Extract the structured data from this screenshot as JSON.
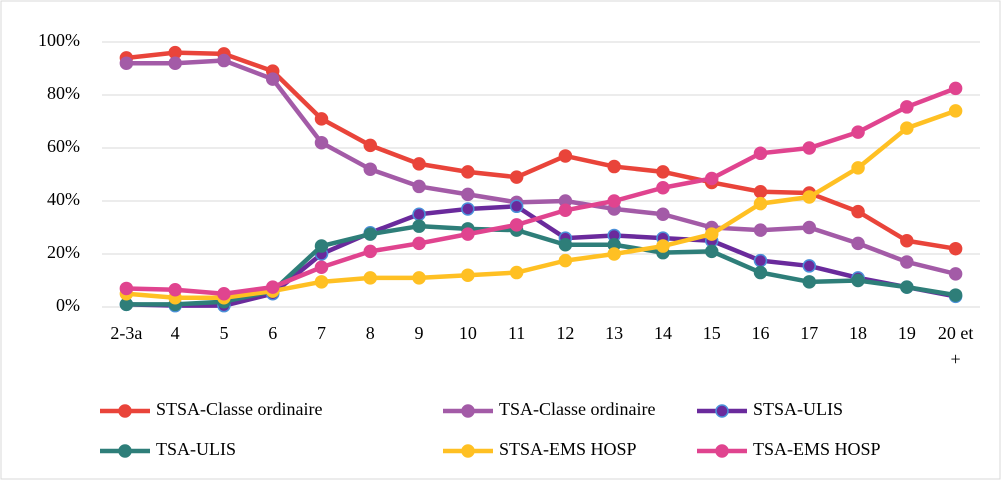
{
  "chart_data": {
    "type": "line",
    "categories": [
      "2-3a",
      "4",
      "5",
      "6",
      "7",
      "8",
      "9",
      "10",
      "11",
      "12",
      "13",
      "14",
      "15",
      "16",
      "17",
      "18",
      "19",
      "20 et +"
    ],
    "series": [
      {
        "name": "STSA-Classe ordinaire",
        "color": "#e9443a",
        "values": [
          94,
          96,
          95.5,
          89,
          71,
          61,
          54,
          51,
          49,
          57,
          53,
          51,
          47,
          43.5,
          43,
          36,
          25,
          22
        ]
      },
      {
        "name": "TSA-Classe ordinaire",
        "color": "#a35ba7",
        "values": [
          92,
          92,
          93,
          86,
          62,
          52,
          45.5,
          42.5,
          39.5,
          40,
          37,
          35,
          30,
          29,
          30,
          24,
          17,
          12.5
        ]
      },
      {
        "name": "STSA-ULIS",
        "color": "#6a2a9c",
        "marker_edge": "#4a90d9",
        "values": [
          1,
          0.5,
          0.5,
          5,
          20,
          28,
          35,
          37,
          38,
          26,
          27,
          26,
          25,
          17.5,
          15.5,
          11,
          7.5,
          4
        ]
      },
      {
        "name": "TSA-ULIS",
        "color": "#2e7e79",
        "values": [
          1,
          1,
          2,
          6,
          23,
          27.5,
          30.5,
          29.5,
          29,
          23.5,
          23.5,
          20.5,
          21,
          13,
          9.5,
          10,
          7.5,
          4.5
        ]
      },
      {
        "name": "STSA-EMS HOSP",
        "color": "#ffc023",
        "values": [
          5,
          3.5,
          3.5,
          6,
          9.5,
          11,
          11,
          12,
          13,
          17.5,
          20,
          23,
          27.5,
          39,
          41.5,
          52.5,
          67.5,
          74
        ]
      },
      {
        "name": "TSA-EMS HOSP",
        "color": "#e0448f",
        "values": [
          7,
          6.5,
          5,
          7.5,
          15,
          21,
          24,
          27.5,
          31,
          36.5,
          40,
          45,
          48.5,
          58,
          60,
          66,
          75.5,
          82.5
        ]
      }
    ],
    "ylim": [
      0,
      100
    ],
    "yticks": [
      {
        "value": 0,
        "label": "0%"
      },
      {
        "value": 20,
        "label": "20%"
      },
      {
        "value": 40,
        "label": "40%"
      },
      {
        "value": 60,
        "label": "60%"
      },
      {
        "value": 80,
        "label": "80%"
      },
      {
        "value": 100,
        "label": "100%"
      }
    ],
    "grid": true,
    "legend": "bottom"
  }
}
